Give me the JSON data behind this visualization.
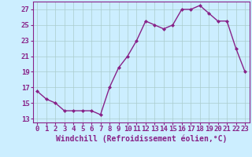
{
  "x": [
    0,
    1,
    2,
    3,
    4,
    5,
    6,
    7,
    8,
    9,
    10,
    11,
    12,
    13,
    14,
    15,
    16,
    17,
    18,
    19,
    20,
    21,
    22,
    23
  ],
  "y": [
    16.5,
    15.5,
    15.0,
    14.0,
    14.0,
    14.0,
    14.0,
    13.5,
    17.0,
    19.5,
    21.0,
    23.0,
    25.5,
    25.0,
    24.5,
    25.0,
    27.0,
    27.0,
    27.5,
    26.5,
    25.5,
    25.5,
    22.0,
    19.0
  ],
  "line_color": "#882288",
  "marker": "D",
  "marker_size": 2.0,
  "bg_color": "#cceeff",
  "grid_color": "#aacccc",
  "xlabel": "Windchill (Refroidissement éolien,°C)",
  "xlim": [
    -0.5,
    23.5
  ],
  "ylim": [
    12.5,
    28.0
  ],
  "yticks": [
    13,
    15,
    17,
    19,
    21,
    23,
    25,
    27
  ],
  "xtick_labels": [
    "0",
    "1",
    "2",
    "3",
    "4",
    "5",
    "6",
    "7",
    "8",
    "9",
    "10",
    "11",
    "12",
    "13",
    "14",
    "15",
    "16",
    "17",
    "18",
    "19",
    "20",
    "21",
    "22",
    "23"
  ],
  "xlabel_fontsize": 7.0,
  "tick_fontsize": 6.5,
  "label_color": "#882288",
  "linewidth": 1.0
}
